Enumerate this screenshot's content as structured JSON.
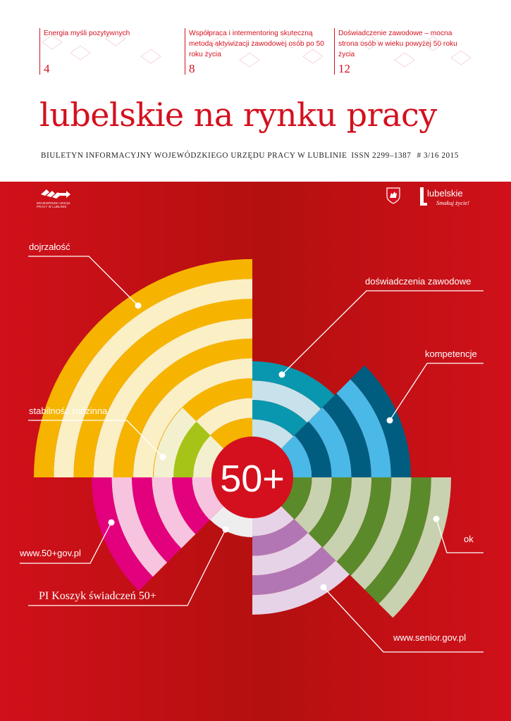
{
  "toc": [
    {
      "title": "Energia myśli pozytywnych",
      "page": "4"
    },
    {
      "title": "Współpraca i intermentoring skuteczną metodą aktywizacji zawodowej osób po 50 roku życia",
      "page": "8"
    },
    {
      "title": "Doświadczenie zawodowe – mocna strona osób w wieku powyżej 50 roku życia",
      "page": "12"
    }
  ],
  "masthead": {
    "title": "lubelskie na rynku pracy"
  },
  "subtitle": {
    "text": "BIULETYN INFORMACYJNY WOJEWÓDZKIEGO URZĘDU PRACY W LUBLINIE",
    "issn": "ISSN 2299–1387",
    "issue": "# 3/16 2015"
  },
  "logos": {
    "wup_text": "WOJEWÓDZKI URZĄD PRACY W LUBLINIE",
    "brand_name": "lubelskie",
    "brand_tagline": "Smakuj życie!"
  },
  "center_badge": "50+",
  "labels": {
    "dojrzalosc": "dojrzałość",
    "doswiadczenia": "doświadczenia zawodowe",
    "kompetencje": "kompetencje",
    "stabilnosc": "stabilność rodzinna",
    "www50": "www.50+gov.pl",
    "ok": "ok",
    "koszyk": "PI Koszyk świadczeń 50+",
    "senior": "www.senior.gov.pl"
  },
  "colors": {
    "red": "#d4101e",
    "yellow": "#f6b400",
    "cream": "#fbefc6",
    "blue": "#4ab9e8",
    "navy": "#005d80",
    "teal": "#0897ae",
    "paleblue": "#c8e2ec",
    "green": "#5b8a2a",
    "sage": "#c8d2b0",
    "purple": "#b376b4",
    "lilac": "#e7d3e8",
    "magenta": "#e2007d",
    "pink": "#f6c4de",
    "lime": "#a6c417",
    "palecream": "#f3f0cf"
  }
}
